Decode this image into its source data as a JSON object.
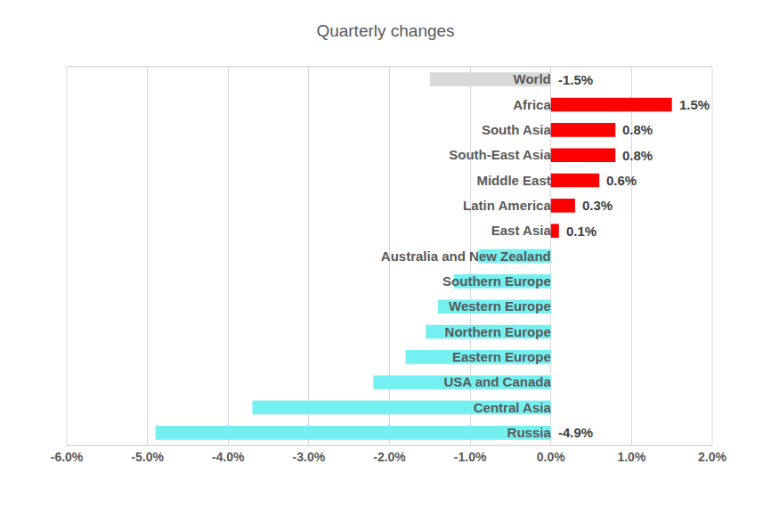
{
  "chart_data": {
    "type": "bar",
    "orientation": "horizontal",
    "title": "Quarterly changes",
    "categories": [
      "World",
      "Africa",
      "South Asia",
      "South-East Asia",
      "Middle East",
      "Latin America",
      "East Asia",
      "Australia and New Zealand",
      "Southern Europe",
      "Western Europe",
      "Northern Europe",
      "Eastern Europe",
      "USA and Canada",
      "Central Asia",
      "Russia"
    ],
    "values": [
      -1.5,
      1.5,
      0.8,
      0.8,
      0.6,
      0.3,
      0.1,
      -0.9,
      -1.2,
      -1.4,
      -1.55,
      -1.8,
      -2.2,
      -3.7,
      -4.9
    ],
    "value_labels": [
      "-1.5%",
      "1.5%",
      "0.8%",
      "0.8%",
      "0.6%",
      "0.3%",
      "0.1%",
      null,
      null,
      null,
      null,
      null,
      null,
      null,
      "-4.9%"
    ],
    "colors": [
      "#d9d9d9",
      "#ff0000",
      "#ff0000",
      "#ff0000",
      "#ff0000",
      "#ff0000",
      "#ff0000",
      "#75f0f0",
      "#75f0f0",
      "#75f0f0",
      "#75f0f0",
      "#75f0f0",
      "#75f0f0",
      "#75f0f0",
      "#75f0f0"
    ],
    "xlim": [
      -6,
      2
    ],
    "xticks": [
      {
        "value": -6,
        "label": "-6.0%"
      },
      {
        "value": -5,
        "label": "-5.0%"
      },
      {
        "value": -4,
        "label": "-4.0%"
      },
      {
        "value": -3,
        "label": "-3.0%"
      },
      {
        "value": -2,
        "label": "-2.0%"
      },
      {
        "value": -1,
        "label": "-1.0%"
      },
      {
        "value": 0,
        "label": "0.0%"
      },
      {
        "value": 1,
        "label": "1.0%"
      },
      {
        "value": 2,
        "label": "2.0%"
      }
    ],
    "grid": true,
    "data_labels": true
  }
}
